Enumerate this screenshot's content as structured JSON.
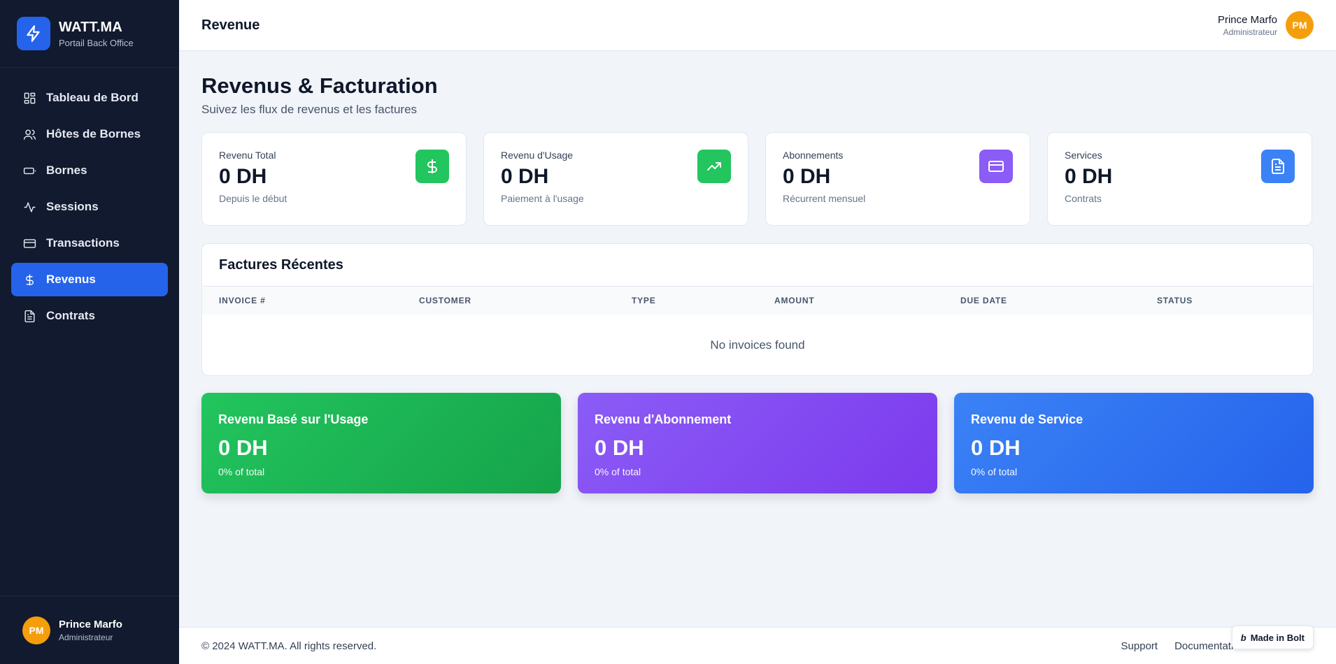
{
  "brand": {
    "title": "WATT.MA",
    "subtitle": "Portail Back Office"
  },
  "sidebar": {
    "items": [
      {
        "label": "Tableau de Bord",
        "icon": "dashboard-grid-icon"
      },
      {
        "label": "Hôtes de Bornes",
        "icon": "users-icon"
      },
      {
        "label": "Bornes",
        "icon": "battery-icon"
      },
      {
        "label": "Sessions",
        "icon": "activity-icon"
      },
      {
        "label": "Transactions",
        "icon": "credit-card-icon"
      },
      {
        "label": "Revenus",
        "icon": "dollar-icon",
        "active": true
      },
      {
        "label": "Contrats",
        "icon": "file-text-icon"
      }
    ],
    "user": {
      "initials": "PM",
      "name": "Prince Marfo",
      "role": "Administrateur"
    }
  },
  "header": {
    "title": "Revenue",
    "user": {
      "name": "Prince Marfo",
      "role": "Administrateur",
      "initials": "PM"
    }
  },
  "page": {
    "title": "Revenus & Facturation",
    "subtitle": "Suivez les flux de revenus et les factures"
  },
  "stats": [
    {
      "label": "Revenu Total",
      "value": "0 DH",
      "desc": "Depuis le début",
      "icon": "dollar-icon",
      "color": "#22c55e"
    },
    {
      "label": "Revenu d'Usage",
      "value": "0 DH",
      "desc": "Paiement à l'usage",
      "icon": "trending-up-icon",
      "color": "#22c55e"
    },
    {
      "label": "Abonnements",
      "value": "0 DH",
      "desc": "Récurrent mensuel",
      "icon": "credit-card-icon",
      "color": "#8b5cf6"
    },
    {
      "label": "Services",
      "value": "0 DH",
      "desc": "Contrats",
      "icon": "file-text-icon",
      "color": "#3b82f6"
    }
  ],
  "invoices": {
    "title": "Factures Récentes",
    "columns": [
      "INVOICE #",
      "CUSTOMER",
      "TYPE",
      "AMOUNT",
      "DUE DATE",
      "STATUS"
    ],
    "empty": "No invoices found"
  },
  "summary": [
    {
      "title": "Revenu Basé sur l'Usage",
      "value": "0 DH",
      "pct": "0% of total",
      "color_from": "#22c55e",
      "color_to": "#16a34a"
    },
    {
      "title": "Revenu d'Abonnement",
      "value": "0 DH",
      "pct": "0% of total",
      "color_from": "#8b5cf6",
      "color_to": "#7c3aed"
    },
    {
      "title": "Revenu de Service",
      "value": "0 DH",
      "pct": "0% of total",
      "color_from": "#3b82f6",
      "color_to": "#2563eb"
    }
  ],
  "footer": {
    "copyright": "© 2024 WATT.MA. All rights reserved.",
    "links": [
      "Support",
      "Documentation"
    ],
    "badge": "Made in Bolt"
  }
}
